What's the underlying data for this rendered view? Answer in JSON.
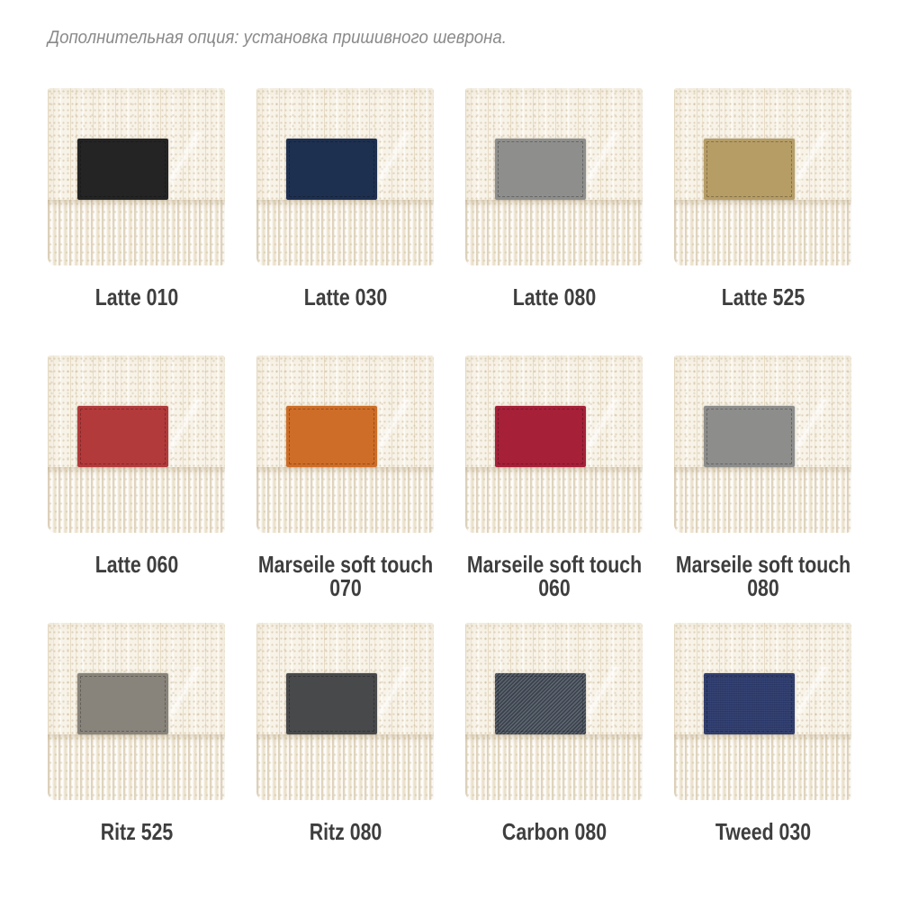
{
  "header": {
    "note": "Дополнительная опция: установка пришивного шеврона."
  },
  "swatches": {
    "blanket_color": "#f8f3e8",
    "stitch_color": "rgba(0,0,0,0.28)",
    "items": [
      {
        "label": "Latte 010",
        "patch_color": "#242424",
        "texture": "suede"
      },
      {
        "label": "Latte 030",
        "patch_color": "#1e3050",
        "texture": "suede"
      },
      {
        "label": "Latte 080",
        "patch_color": "#8e8e8c",
        "texture": "suede"
      },
      {
        "label": "Latte 525",
        "patch_color": "#b69d66",
        "texture": "suede"
      },
      {
        "label": "Latte 060",
        "patch_color": "#b23a3b",
        "texture": "suede"
      },
      {
        "label": "Marseile soft touch 070",
        "patch_color": "#ce6d27",
        "texture": "suede"
      },
      {
        "label": "Marseile soft touch 060",
        "patch_color": "#a62038",
        "texture": "suede"
      },
      {
        "label": "Marseile soft touch 080",
        "patch_color": "#8d8e8c",
        "texture": "suede"
      },
      {
        "label": "Ritz 525",
        "patch_color": "#88847b",
        "texture": "suede"
      },
      {
        "label": "Ritz 080",
        "patch_color": "#48494a",
        "texture": "suede"
      },
      {
        "label": "Carbon 080",
        "patch_color": "#4a515c",
        "texture": "twill",
        "twill_dark": "#3a414b",
        "twill_light": "#5d6570"
      },
      {
        "label": "Tweed 030",
        "patch_color": "#2c3b6e",
        "texture": "woven"
      }
    ]
  }
}
